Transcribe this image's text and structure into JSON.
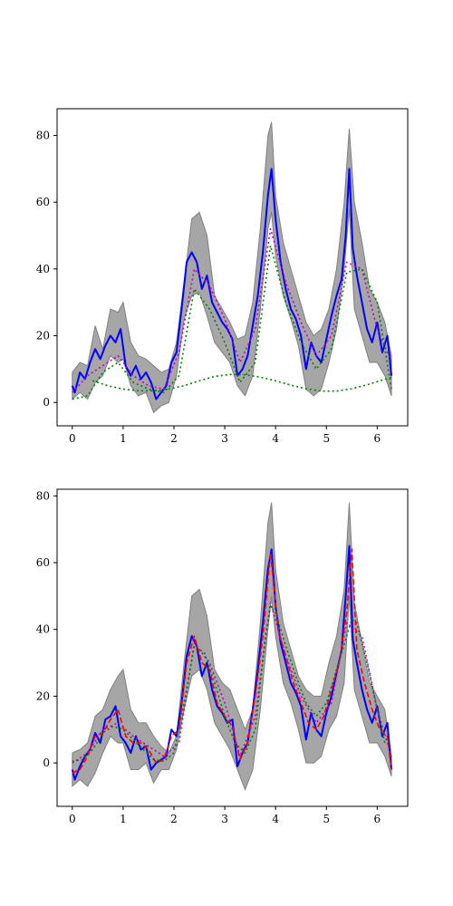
{
  "colors": {
    "band": "#a6a6a6",
    "band_edge": "#7f7f7f",
    "mean": "#0000ff",
    "dotted_magenta": "#bf00bf",
    "dotted_green": "#008000",
    "dashed_red": "#ff0000"
  },
  "chart_data": [
    {
      "type": "line",
      "title": "",
      "xlabel": "",
      "ylabel": "",
      "xlim": [
        -0.3,
        6.6
      ],
      "ylim": [
        -7,
        88
      ],
      "xticks": [
        0,
        1,
        2,
        3,
        4,
        5,
        6
      ],
      "yticks": [
        0,
        20,
        40,
        60,
        80
      ],
      "grid": false,
      "band": {
        "x": [
          0,
          0.15,
          0.3,
          0.45,
          0.6,
          0.75,
          0.9,
          1.0,
          1.15,
          1.3,
          1.45,
          1.6,
          1.75,
          1.9,
          2.05,
          2.2,
          2.35,
          2.5,
          2.65,
          2.8,
          2.95,
          3.1,
          3.25,
          3.4,
          3.55,
          3.7,
          3.85,
          3.92,
          4.0,
          4.15,
          4.3,
          4.45,
          4.6,
          4.75,
          4.9,
          5.05,
          5.2,
          5.35,
          5.45,
          5.55,
          5.7,
          5.85,
          6.0,
          6.15,
          6.28
        ],
        "upper": [
          9,
          12,
          11,
          23,
          16,
          28,
          27,
          30,
          18,
          14,
          13,
          11,
          9,
          10,
          18,
          36,
          55,
          57,
          50,
          32,
          28,
          24,
          19,
          20,
          30,
          52,
          80,
          84,
          62,
          48,
          40,
          32,
          24,
          20,
          22,
          28,
          40,
          60,
          82,
          60,
          48,
          34,
          30,
          24,
          14
        ],
        "lower": [
          1,
          3,
          1,
          6,
          8,
          14,
          12,
          13,
          5,
          2,
          3,
          -3,
          -1,
          0,
          8,
          25,
          32,
          33,
          26,
          18,
          15,
          12,
          5,
          2,
          8,
          28,
          52,
          57,
          44,
          32,
          25,
          17,
          4,
          2,
          4,
          12,
          22,
          40,
          58,
          28,
          20,
          12,
          12,
          8,
          2
        ]
      },
      "series": [
        {
          "style": "solid",
          "color": "#0000ff",
          "x": [
            0,
            0.05,
            0.15,
            0.25,
            0.35,
            0.45,
            0.55,
            0.65,
            0.75,
            0.85,
            0.95,
            1.05,
            1.15,
            1.25,
            1.35,
            1.45,
            1.55,
            1.65,
            1.75,
            1.85,
            1.95,
            2.05,
            2.15,
            2.25,
            2.35,
            2.45,
            2.55,
            2.65,
            2.75,
            2.85,
            2.95,
            3.05,
            3.15,
            3.25,
            3.35,
            3.45,
            3.55,
            3.65,
            3.75,
            3.85,
            3.92,
            4.0,
            4.1,
            4.2,
            4.3,
            4.4,
            4.5,
            4.6,
            4.7,
            4.8,
            4.9,
            5.0,
            5.1,
            5.2,
            5.3,
            5.38,
            5.45,
            5.52,
            5.6,
            5.7,
            5.8,
            5.9,
            6.0,
            6.1,
            6.2,
            6.28
          ],
          "y": [
            5,
            3,
            9,
            7,
            12,
            16,
            13,
            17,
            20,
            18,
            22,
            11,
            8,
            11,
            7,
            9,
            6,
            1,
            3,
            5,
            12,
            15,
            28,
            42,
            45,
            42,
            34,
            38,
            30,
            27,
            24,
            22,
            19,
            8,
            10,
            14,
            23,
            32,
            45,
            62,
            70,
            55,
            42,
            34,
            28,
            25,
            20,
            10,
            18,
            14,
            12,
            19,
            26,
            32,
            37,
            50,
            70,
            46,
            38,
            30,
            22,
            18,
            24,
            15,
            20,
            8
          ]
        },
        {
          "style": "dotted",
          "color": "#bf00bf",
          "x": [
            0,
            0.3,
            0.6,
            0.9,
            1.2,
            1.5,
            1.8,
            2.1,
            2.4,
            2.7,
            3.0,
            3.3,
            3.6,
            3.9,
            4.2,
            4.5,
            4.8,
            5.1,
            5.4,
            5.7,
            6.0,
            6.28
          ],
          "y": [
            3,
            8,
            11,
            14,
            8,
            5,
            4,
            15,
            40,
            35,
            25,
            12,
            22,
            52,
            36,
            24,
            14,
            20,
            42,
            40,
            22,
            12
          ]
        },
        {
          "style": "dotted",
          "color": "#008000",
          "x": [
            0,
            0.3,
            0.6,
            0.9,
            1.2,
            1.5,
            1.8,
            2.1,
            2.4,
            2.7,
            3.0,
            3.3,
            3.6,
            3.9,
            4.2,
            4.5,
            4.8,
            5.1,
            5.4,
            5.7,
            6.0,
            6.28
          ],
          "y": [
            1,
            2,
            9,
            12,
            6,
            4,
            3,
            8,
            34,
            28,
            18,
            6,
            12,
            47,
            30,
            18,
            10,
            16,
            39,
            40,
            30,
            4
          ]
        },
        {
          "style": "dotted",
          "color": "#008000",
          "x": [
            0.4,
            0.7,
            1.0,
            1.3,
            1.6,
            1.9,
            2.2,
            2.5,
            2.8,
            3.1,
            3.4,
            3.7,
            4.0,
            4.3,
            4.6,
            4.9,
            5.2,
            5.5,
            5.8,
            6.1,
            6.28
          ],
          "y": [
            6.5,
            5,
            4,
            3.5,
            3.5,
            4,
            5,
            6.5,
            7.8,
            8.4,
            8.3,
            7.6,
            6.5,
            5.2,
            4.1,
            3.4,
            3.4,
            4.1,
            5.3,
            6.7,
            7.5
          ]
        }
      ]
    },
    {
      "type": "line",
      "title": "",
      "xlabel": "",
      "ylabel": "",
      "xlim": [
        -0.3,
        6.6
      ],
      "ylim": [
        -13,
        82
      ],
      "xticks": [
        0,
        1,
        2,
        3,
        4,
        5,
        6
      ],
      "yticks": [
        0,
        20,
        40,
        60,
        80
      ],
      "grid": false,
      "band": {
        "x": [
          0,
          0.15,
          0.3,
          0.45,
          0.6,
          0.75,
          0.9,
          1.0,
          1.15,
          1.3,
          1.45,
          1.6,
          1.75,
          1.9,
          2.05,
          2.2,
          2.35,
          2.5,
          2.65,
          2.8,
          2.95,
          3.1,
          3.25,
          3.4,
          3.55,
          3.7,
          3.85,
          3.92,
          4.0,
          4.15,
          4.3,
          4.45,
          4.6,
          4.75,
          4.9,
          5.05,
          5.2,
          5.35,
          5.45,
          5.55,
          5.7,
          5.85,
          6.0,
          6.15,
          6.28
        ],
        "upper": [
          3,
          4,
          6,
          14,
          16,
          22,
          26,
          28,
          16,
          12,
          12,
          8,
          5,
          3,
          8,
          30,
          50,
          52,
          44,
          28,
          24,
          22,
          16,
          10,
          16,
          42,
          72,
          78,
          58,
          42,
          34,
          26,
          22,
          20,
          20,
          30,
          38,
          52,
          78,
          48,
          36,
          24,
          20,
          16,
          2
        ],
        "lower": [
          -7,
          -5,
          -7,
          -3,
          3,
          8,
          6,
          6,
          -2,
          -2,
          0,
          -6,
          -2,
          -2,
          4,
          16,
          26,
          28,
          22,
          12,
          8,
          4,
          -2,
          -8,
          -2,
          16,
          40,
          50,
          38,
          24,
          18,
          10,
          0,
          0,
          2,
          10,
          14,
          24,
          50,
          22,
          14,
          6,
          6,
          2,
          -4
        ]
      },
      "series": [
        {
          "style": "solid",
          "color": "#0000ff",
          "x": [
            0,
            0.05,
            0.15,
            0.25,
            0.35,
            0.45,
            0.55,
            0.65,
            0.75,
            0.85,
            0.95,
            1.05,
            1.15,
            1.25,
            1.35,
            1.45,
            1.55,
            1.65,
            1.75,
            1.85,
            1.95,
            2.05,
            2.15,
            2.25,
            2.35,
            2.45,
            2.55,
            2.65,
            2.75,
            2.85,
            2.95,
            3.05,
            3.15,
            3.25,
            3.35,
            3.45,
            3.55,
            3.65,
            3.75,
            3.85,
            3.92,
            4.0,
            4.1,
            4.2,
            4.3,
            4.4,
            4.5,
            4.6,
            4.7,
            4.8,
            4.9,
            5.0,
            5.1,
            5.2,
            5.3,
            5.38,
            5.45,
            5.52,
            5.6,
            5.7,
            5.8,
            5.9,
            6.0,
            6.1,
            6.2,
            6.28
          ],
          "y": [
            -2,
            -5,
            -1,
            2,
            4,
            9,
            6,
            13,
            14,
            17,
            8,
            6,
            3,
            8,
            4,
            5,
            -2,
            0,
            1,
            2,
            10,
            8,
            18,
            32,
            38,
            35,
            26,
            30,
            22,
            17,
            15,
            12,
            13,
            -1,
            3,
            6,
            16,
            28,
            42,
            58,
            64,
            47,
            36,
            30,
            24,
            21,
            17,
            7,
            15,
            10,
            8,
            15,
            20,
            27,
            34,
            50,
            65,
            37,
            30,
            22,
            16,
            12,
            17,
            8,
            12,
            -2
          ]
        },
        {
          "style": "dashed",
          "color": "#ff0000",
          "x": [
            0,
            0.15,
            0.3,
            0.45,
            0.6,
            0.75,
            0.9,
            1.05,
            1.2,
            1.35,
            1.5,
            1.65,
            1.8,
            1.95,
            2.1,
            2.25,
            2.4,
            2.55,
            2.7,
            2.85,
            3.0,
            3.15,
            3.3,
            3.45,
            3.6,
            3.75,
            3.9,
            4.05,
            4.2,
            4.35,
            4.5,
            4.65,
            4.8,
            4.95,
            5.1,
            5.25,
            5.4,
            5.5,
            5.6,
            5.75,
            5.9,
            6.05,
            6.2,
            6.28
          ],
          "y": [
            -3,
            -2,
            2,
            8,
            9,
            13,
            16,
            8,
            6,
            6,
            4,
            0,
            1,
            8,
            10,
            30,
            38,
            30,
            28,
            18,
            14,
            11,
            1,
            6,
            20,
            38,
            63,
            40,
            32,
            24,
            18,
            12,
            10,
            14,
            22,
            30,
            45,
            64,
            34,
            24,
            16,
            10,
            8,
            -2
          ]
        },
        {
          "style": "dotted",
          "color": "#bf00bf",
          "x": [
            0,
            0.3,
            0.6,
            0.9,
            1.2,
            1.5,
            1.8,
            2.1,
            2.4,
            2.7,
            3.0,
            3.3,
            3.6,
            3.9,
            4.2,
            4.5,
            4.8,
            5.1,
            5.4,
            5.7,
            6.0,
            6.28
          ],
          "y": [
            0,
            3,
            10,
            12,
            8,
            5,
            2,
            6,
            36,
            30,
            18,
            2,
            14,
            48,
            32,
            20,
            12,
            18,
            42,
            38,
            16,
            2
          ]
        },
        {
          "style": "dotted",
          "color": "#008000",
          "x": [
            0,
            0.2,
            0.4,
            0.6,
            0.8,
            1.0,
            1.2,
            1.4,
            1.6,
            1.8,
            2.0,
            2.2,
            2.4,
            2.6,
            2.8,
            3.0,
            3.2,
            3.4,
            3.6,
            3.8,
            3.9,
            4.0,
            4.2,
            4.4,
            4.6,
            4.8,
            5.0,
            5.2,
            5.4,
            5.5,
            5.6,
            5.8,
            6.0,
            6.15
          ],
          "y": [
            0.5,
            1,
            4,
            9,
            11,
            10,
            7,
            4,
            1,
            0.5,
            3,
            18,
            35,
            33,
            24,
            14,
            6,
            3,
            10,
            38,
            47,
            45,
            35,
            26,
            18,
            14,
            18,
            28,
            38,
            43,
            42,
            30,
            16,
            6
          ]
        }
      ]
    }
  ]
}
